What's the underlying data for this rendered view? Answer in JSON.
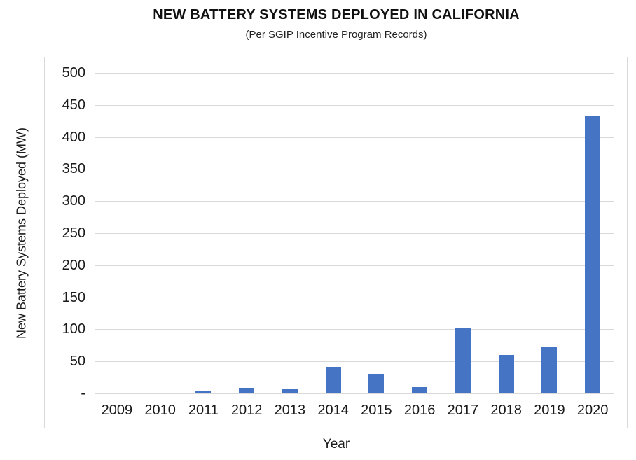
{
  "title": "NEW BATTERY SYSTEMS DEPLOYED IN CALIFORNIA",
  "subtitle": "(Per SGIP Incentive Program Records)",
  "chart_data": {
    "type": "bar",
    "title": "NEW BATTERY SYSTEMS DEPLOYED IN CALIFORNIA",
    "subtitle": "(Per SGIP Incentive Program Records)",
    "categories": [
      "2009",
      "2010",
      "2011",
      "2012",
      "2013",
      "2014",
      "2015",
      "2016",
      "2017",
      "2018",
      "2019",
      "2020"
    ],
    "values": [
      0,
      0,
      3,
      9,
      7,
      41,
      31,
      10,
      102,
      60,
      72,
      432
    ],
    "xlabel": "Year",
    "ylabel": "New Battery Systems Deployed (MW)",
    "ylim": [
      0,
      500
    ],
    "ytick_step": 50,
    "zero_tick_label": "-",
    "grid": true,
    "legend": "none",
    "bar_color": "#4574c4",
    "gridline_color": "#d9d9d9",
    "border_color": "#d9d9d9"
  }
}
